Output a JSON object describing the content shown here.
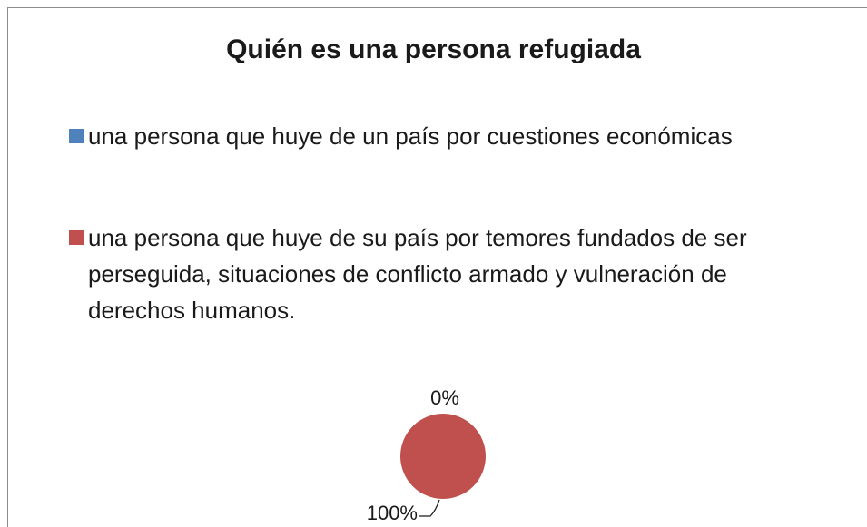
{
  "chart_data": {
    "type": "pie",
    "title": "Quién es una persona refugiada",
    "categories": [
      "una persona que huye de un país por cuestiones económicas",
      "una persona que huye de su país por temores fundados de ser perseguida, situaciones de conflicto armado y vulneración de derechos humanos."
    ],
    "values": [
      0,
      100
    ],
    "value_labels": [
      "0%",
      "100%"
    ],
    "colors": [
      "#4f81bd",
      "#c0504d"
    ],
    "legend": "top"
  }
}
